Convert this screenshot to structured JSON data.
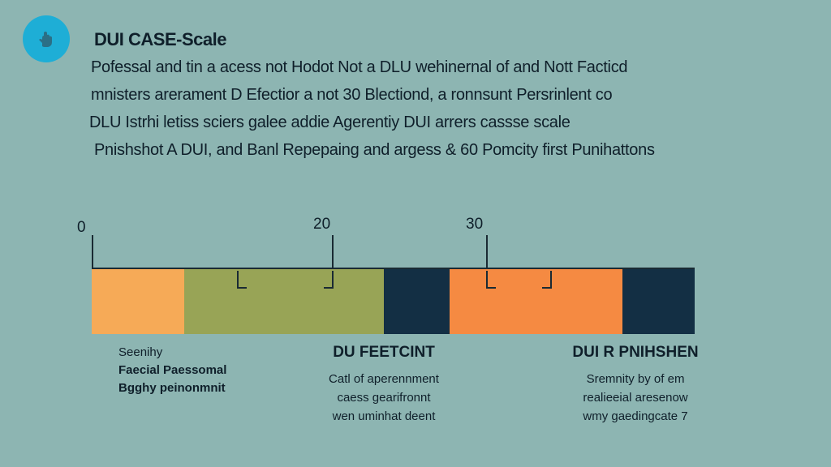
{
  "logo": {
    "icon": "hand-icon",
    "color": "#1eaed6"
  },
  "title": "DUI CASE-Scale",
  "paragraph": [
    "Pofessal and tin a acess not Hodot Not a DLU wehinernal of and Nott Facticd",
    "mnisters arerament D Efectior a not 30 Blectiond, a ronnsunt Persrinlent co",
    "DLU Istrhi letiss sciers galee addie Agerentiy DUI arrers cassse scale",
    "Pnishshot A DUI, and Banl Repepaing and argess & 60 Pomcity first Punihattons"
  ],
  "scale": {
    "ticks": [
      "0",
      "20",
      "30"
    ],
    "segments": [
      {
        "name": "light-orange",
        "color": "#f6aa57",
        "fraction": 0.154
      },
      {
        "name": "olive",
        "color": "#98a456",
        "fraction": 0.33
      },
      {
        "name": "navy",
        "color": "#132f44",
        "fraction": 0.11
      },
      {
        "name": "orange",
        "color": "#f58a42",
        "fraction": 0.286
      },
      {
        "name": "navy-end",
        "color": "#132f44",
        "fraction": 0.12
      }
    ]
  },
  "captions": {
    "left": {
      "lines": [
        "Seenihy",
        "Faecial Paessomal",
        "Bgghy peinonmnit"
      ]
    },
    "middle": {
      "head": "DU FEETCINT",
      "lines": [
        "Catl of aperennment",
        "caess gearifronnt",
        "wen uminhat deent"
      ]
    },
    "right": {
      "head": "DUI R PNIHSHEN",
      "lines": [
        "Sremnity by of em",
        "realieeial aresenow",
        "wmy gaedingcate 7"
      ]
    }
  }
}
